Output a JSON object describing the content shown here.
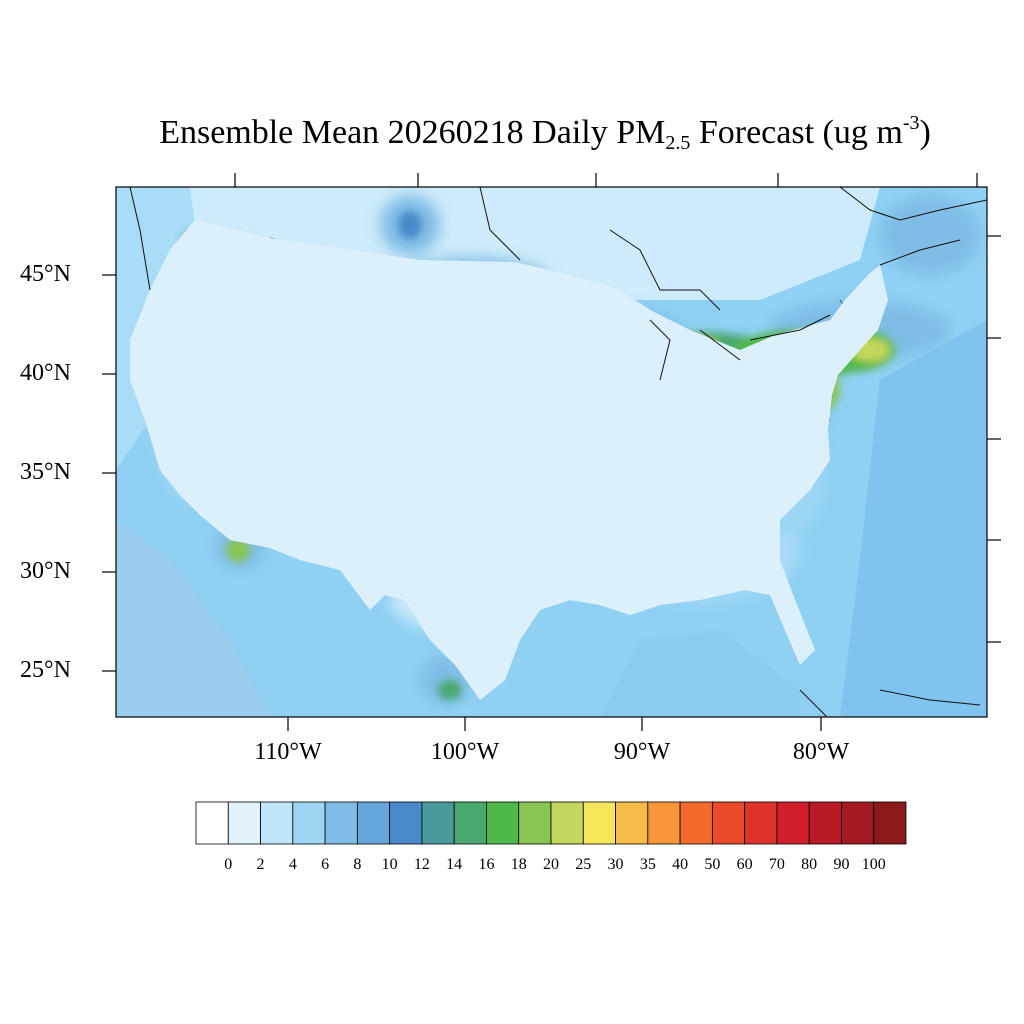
{
  "title": {
    "prefix": "Ensemble Mean 20260218 Daily PM",
    "subscript": "2.5",
    "middle": " Forecast (ug m",
    "superscript": "-3",
    "suffix": ")"
  },
  "map": {
    "type": "filled-contour",
    "variable": "PM2.5",
    "units": "ug m-3",
    "region": "Contiguous United States",
    "latitude_labels": [
      "45°N",
      "40°N",
      "35°N",
      "30°N",
      "25°N"
    ],
    "longitude_labels": [
      "110°W",
      "100°W",
      "90°W",
      "80°W"
    ],
    "ocean_color": "#8fd0f3",
    "land_background_color": "#dff1fc"
  },
  "colorbar": {
    "levels": [
      "0",
      "2",
      "4",
      "6",
      "8",
      "10",
      "12",
      "14",
      "16",
      "18",
      "20",
      "25",
      "30",
      "35",
      "40",
      "50",
      "60",
      "70",
      "80",
      "90",
      "100"
    ],
    "colors": [
      "#ffffff",
      "#e0f3fc",
      "#bfe6f8",
      "#9dd6f3",
      "#80bde6",
      "#64a6db",
      "#4a89c9",
      "#4a9a9e",
      "#4aa86f",
      "#4fb84a",
      "#89c552",
      "#c3d75c",
      "#f7e55a",
      "#f7bc47",
      "#f7963a",
      "#f26b2d",
      "#e94b2a",
      "#df3429",
      "#d11f2b",
      "#b91a26",
      "#a21b22",
      "#8c1a1a"
    ]
  }
}
